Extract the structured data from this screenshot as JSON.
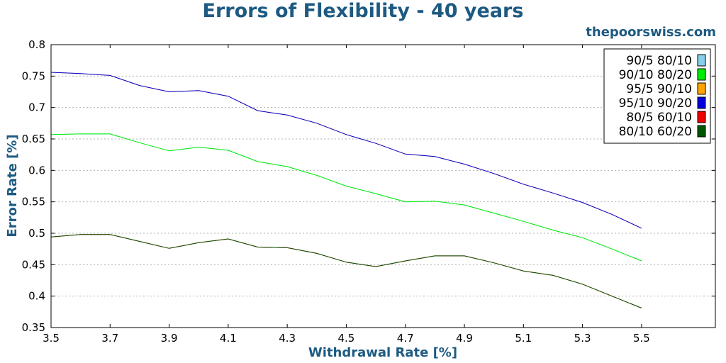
{
  "header": {
    "title": "Errors of Flexibility - 40 years",
    "brand": "thepoorswiss.com"
  },
  "chart_data": {
    "type": "line",
    "title": "Errors of Flexibility - 40 years",
    "xlabel": "Withdrawal Rate [%]",
    "ylabel": "Error Rate [%]",
    "xlim": [
      3.5,
      5.75
    ],
    "ylim": [
      0.35,
      0.8
    ],
    "xticks": [
      "3.5",
      "3.7",
      "3.9",
      "4.1",
      "4.3",
      "4.5",
      "4.7",
      "4.9",
      "5.1",
      "5.3",
      "5.5"
    ],
    "yticks": [
      "0.35",
      "0.4",
      "0.45",
      "0.5",
      "0.55",
      "0.6",
      "0.65",
      "0.7",
      "0.75",
      "0.8"
    ],
    "grid": "horizontal dotted",
    "legend_position": "top-right",
    "x": [
      3.5,
      3.6,
      3.7,
      3.8,
      3.9,
      4.0,
      4.1,
      4.2,
      4.3,
      4.4,
      4.5,
      4.6,
      4.7,
      4.8,
      4.9,
      5.0,
      5.1,
      5.2,
      5.3,
      5.4,
      5.5
    ],
    "series": [
      {
        "name": "90/5 80/10",
        "color": "#87ceeb",
        "values": [
          0.657,
          0.658,
          0.658,
          0.644,
          0.631,
          0.637,
          0.632,
          0.614,
          0.606,
          0.592,
          0.575,
          0.563,
          0.55,
          0.551,
          0.545,
          0.532,
          0.519,
          0.505,
          0.493,
          0.475,
          0.456
        ]
      },
      {
        "name": "90/10 80/20",
        "color": "#00ee00",
        "values": [
          0.657,
          0.658,
          0.658,
          0.644,
          0.631,
          0.637,
          0.632,
          0.614,
          0.606,
          0.592,
          0.575,
          0.563,
          0.55,
          0.551,
          0.545,
          0.532,
          0.519,
          0.505,
          0.493,
          0.475,
          0.456
        ]
      },
      {
        "name": "95/5 90/10",
        "color": "#ffa500",
        "values": [
          0.756,
          0.754,
          0.751,
          0.735,
          0.725,
          0.727,
          0.718,
          0.695,
          0.688,
          0.675,
          0.657,
          0.643,
          0.626,
          0.622,
          0.61,
          0.595,
          0.578,
          0.564,
          0.549,
          0.53,
          0.508
        ]
      },
      {
        "name": "95/10 90/20",
        "color": "#0000dd",
        "values": [
          0.756,
          0.754,
          0.751,
          0.735,
          0.725,
          0.727,
          0.718,
          0.695,
          0.688,
          0.675,
          0.657,
          0.643,
          0.626,
          0.622,
          0.61,
          0.595,
          0.578,
          0.564,
          0.549,
          0.53,
          0.508
        ]
      },
      {
        "name": "80/5 60/10",
        "color": "#ee0000",
        "values": [
          0.494,
          0.498,
          0.498,
          0.487,
          0.476,
          0.485,
          0.491,
          0.478,
          0.477,
          0.468,
          0.454,
          0.447,
          0.456,
          0.464,
          0.464,
          0.453,
          0.44,
          0.433,
          0.419,
          0.4,
          0.381
        ]
      },
      {
        "name": "80/10 60/20",
        "color": "#005500",
        "values": [
          0.494,
          0.498,
          0.498,
          0.487,
          0.476,
          0.485,
          0.491,
          0.478,
          0.477,
          0.468,
          0.454,
          0.447,
          0.456,
          0.464,
          0.464,
          0.453,
          0.44,
          0.433,
          0.419,
          0.4,
          0.381
        ]
      }
    ],
    "draw_order": [
      0,
      1,
      2,
      3,
      4,
      5
    ]
  }
}
